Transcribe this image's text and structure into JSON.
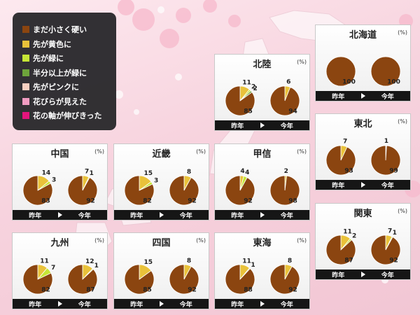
{
  "legend": [
    {
      "label": "まだ小さく硬い",
      "color": "#8b4510"
    },
    {
      "label": "先が黄色に",
      "color": "#e9c23a"
    },
    {
      "label": "先が緑に",
      "color": "#c6e636"
    },
    {
      "label": "半分以上が緑に",
      "color": "#6ea43b"
    },
    {
      "label": "先がピンクに",
      "color": "#f8cfc0"
    },
    {
      "label": "花びらが見えた",
      "color": "#f19cc1"
    },
    {
      "label": "花の軸が伸びきった",
      "color": "#e4147c"
    }
  ],
  "unit": "(%)",
  "bar": {
    "prev": "昨年",
    "curr": "今年"
  },
  "chart_data": [
    {
      "type": "pie",
      "title": "北海道",
      "series": [
        {
          "name": "昨年",
          "values": [
            100,
            0,
            0,
            0,
            0,
            0,
            0
          ]
        },
        {
          "name": "今年",
          "values": [
            100,
            0,
            0,
            0,
            0,
            0,
            0
          ]
        }
      ]
    },
    {
      "type": "pie",
      "title": "北陸",
      "series": [
        {
          "name": "昨年",
          "values": [
            85,
            11,
            2,
            2,
            0,
            0,
            0
          ]
        },
        {
          "name": "今年",
          "values": [
            94,
            6,
            0,
            0,
            0,
            0,
            0
          ]
        }
      ]
    },
    {
      "type": "pie",
      "title": "東北",
      "series": [
        {
          "name": "昨年",
          "values": [
            93,
            7,
            0,
            0,
            0,
            0,
            0
          ]
        },
        {
          "name": "今年",
          "values": [
            99,
            0,
            0,
            0,
            1,
            0,
            0
          ]
        }
      ]
    },
    {
      "type": "pie",
      "title": "中国",
      "series": [
        {
          "name": "昨年",
          "values": [
            83,
            14,
            3,
            0,
            0,
            0,
            0
          ]
        },
        {
          "name": "今年",
          "values": [
            92,
            7,
            1,
            0,
            0,
            0,
            0
          ]
        }
      ]
    },
    {
      "type": "pie",
      "title": "近畿",
      "series": [
        {
          "name": "昨年",
          "values": [
            82,
            15,
            3,
            0,
            0,
            0,
            0
          ]
        },
        {
          "name": "今年",
          "values": [
            92,
            8,
            0,
            0,
            0,
            0,
            0
          ]
        }
      ]
    },
    {
      "type": "pie",
      "title": "甲信",
      "series": [
        {
          "name": "昨年",
          "values": [
            92,
            4,
            4,
            0,
            0,
            0,
            0
          ]
        },
        {
          "name": "今年",
          "values": [
            98,
            2,
            0,
            0,
            0,
            0,
            0
          ]
        }
      ]
    },
    {
      "type": "pie",
      "title": "関東",
      "series": [
        {
          "name": "昨年",
          "values": [
            87,
            11,
            2,
            0,
            0,
            0,
            0
          ]
        },
        {
          "name": "今年",
          "values": [
            92,
            7,
            1,
            0,
            0,
            0,
            0
          ]
        }
      ]
    },
    {
      "type": "pie",
      "title": "九州",
      "series": [
        {
          "name": "昨年",
          "values": [
            82,
            11,
            7,
            0,
            0,
            0,
            0
          ]
        },
        {
          "name": "今年",
          "values": [
            87,
            12,
            1,
            0,
            0,
            0,
            0
          ]
        }
      ]
    },
    {
      "type": "pie",
      "title": "四国",
      "series": [
        {
          "name": "昨年",
          "values": [
            85,
            15,
            0,
            0,
            0,
            0,
            0
          ]
        },
        {
          "name": "今年",
          "values": [
            92,
            8,
            0,
            0,
            0,
            0,
            0
          ]
        }
      ]
    },
    {
      "type": "pie",
      "title": "東海",
      "series": [
        {
          "name": "昨年",
          "values": [
            88,
            11,
            1,
            0,
            0,
            0,
            0
          ]
        },
        {
          "name": "今年",
          "values": [
            92,
            8,
            0,
            0,
            0,
            0,
            0
          ]
        }
      ]
    }
  ]
}
